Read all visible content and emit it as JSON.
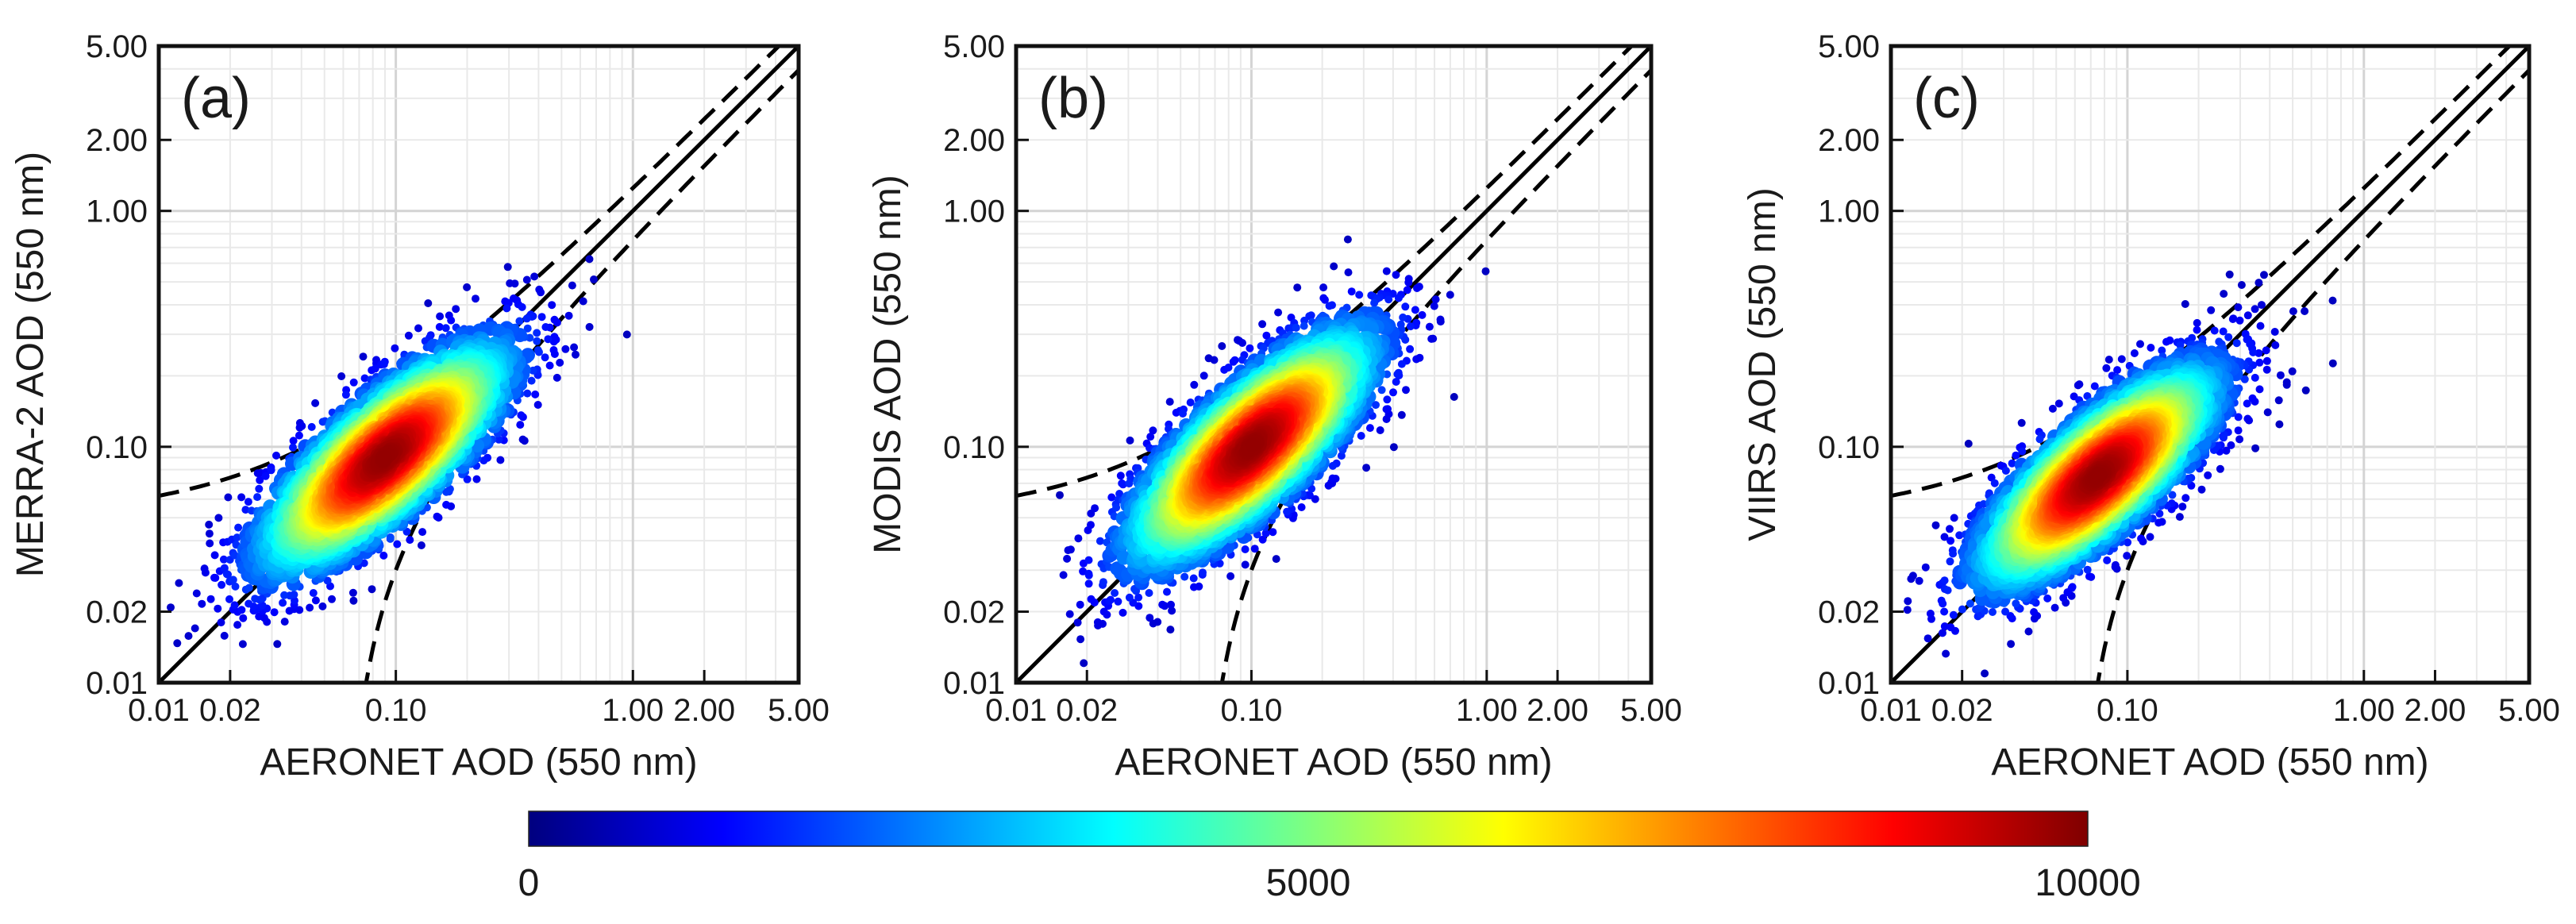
{
  "chart_data": [
    {
      "type": "scatter",
      "panel_label": "(a)",
      "xlabel": "AERONET AOD (550 nm)",
      "ylabel": "MERRA-2 AOD (550 nm)",
      "xscale": "log",
      "yscale": "log",
      "xlim": [
        0.01,
        5.0
      ],
      "ylim": [
        0.01,
        5.0
      ],
      "xticks": [
        "0.01",
        "0.02",
        "0.10",
        "1.00",
        "2.00",
        "5.00"
      ],
      "yticks": [
        "0.01",
        "0.02",
        "0.10",
        "1.00",
        "2.00",
        "5.00"
      ],
      "density_center": [
        0.09,
        0.09
      ],
      "density_spread": [
        0.62,
        0.6
      ],
      "reference_lines": [
        "1:1 line",
        "expected error envelope ±(0.05 + 0.2·AOD)"
      ],
      "grid": true
    },
    {
      "type": "scatter",
      "panel_label": "(b)",
      "xlabel": "AERONET AOD (550 nm)",
      "ylabel": "MODIS AOD (550 nm)",
      "xscale": "log",
      "yscale": "log",
      "xlim": [
        0.01,
        5.0
      ],
      "ylim": [
        0.01,
        5.0
      ],
      "xticks": [
        "0.01",
        "0.02",
        "0.10",
        "1.00",
        "2.00",
        "5.00"
      ],
      "yticks": [
        "0.01",
        "0.02",
        "0.10",
        "1.00",
        "2.00",
        "5.00"
      ],
      "density_center": [
        0.1,
        0.1
      ],
      "density_spread": [
        0.62,
        0.62
      ],
      "reference_lines": [
        "1:1 line",
        "expected error envelope ±(0.05 + 0.2·AOD)"
      ],
      "grid": true
    },
    {
      "type": "scatter",
      "panel_label": "(c)",
      "xlabel": "AERONET AOD (550 nm)",
      "ylabel": "VIIRS AOD (550 nm)",
      "xscale": "log",
      "yscale": "log",
      "xlim": [
        0.01,
        5.0
      ],
      "ylim": [
        0.01,
        5.0
      ],
      "xticks": [
        "0.01",
        "0.02",
        "0.10",
        "1.00",
        "2.00",
        "5.00"
      ],
      "yticks": [
        "0.01",
        "0.02",
        "0.10",
        "1.00",
        "2.00",
        "5.00"
      ],
      "density_center": [
        0.075,
        0.075
      ],
      "density_spread": [
        0.6,
        0.58
      ],
      "reference_lines": [
        "1:1 line",
        "expected error envelope ±(0.05 + 0.2·AOD)"
      ],
      "grid": true
    }
  ],
  "colorbar": {
    "label_min": "0",
    "label_mid": "5000",
    "label_max": "10000",
    "range": [
      0,
      10000
    ],
    "colormap": [
      "#00007f",
      "#0000ff",
      "#007fff",
      "#00ffff",
      "#7fff7f",
      "#ffff00",
      "#ff7f00",
      "#ff0000",
      "#7f0000"
    ]
  }
}
